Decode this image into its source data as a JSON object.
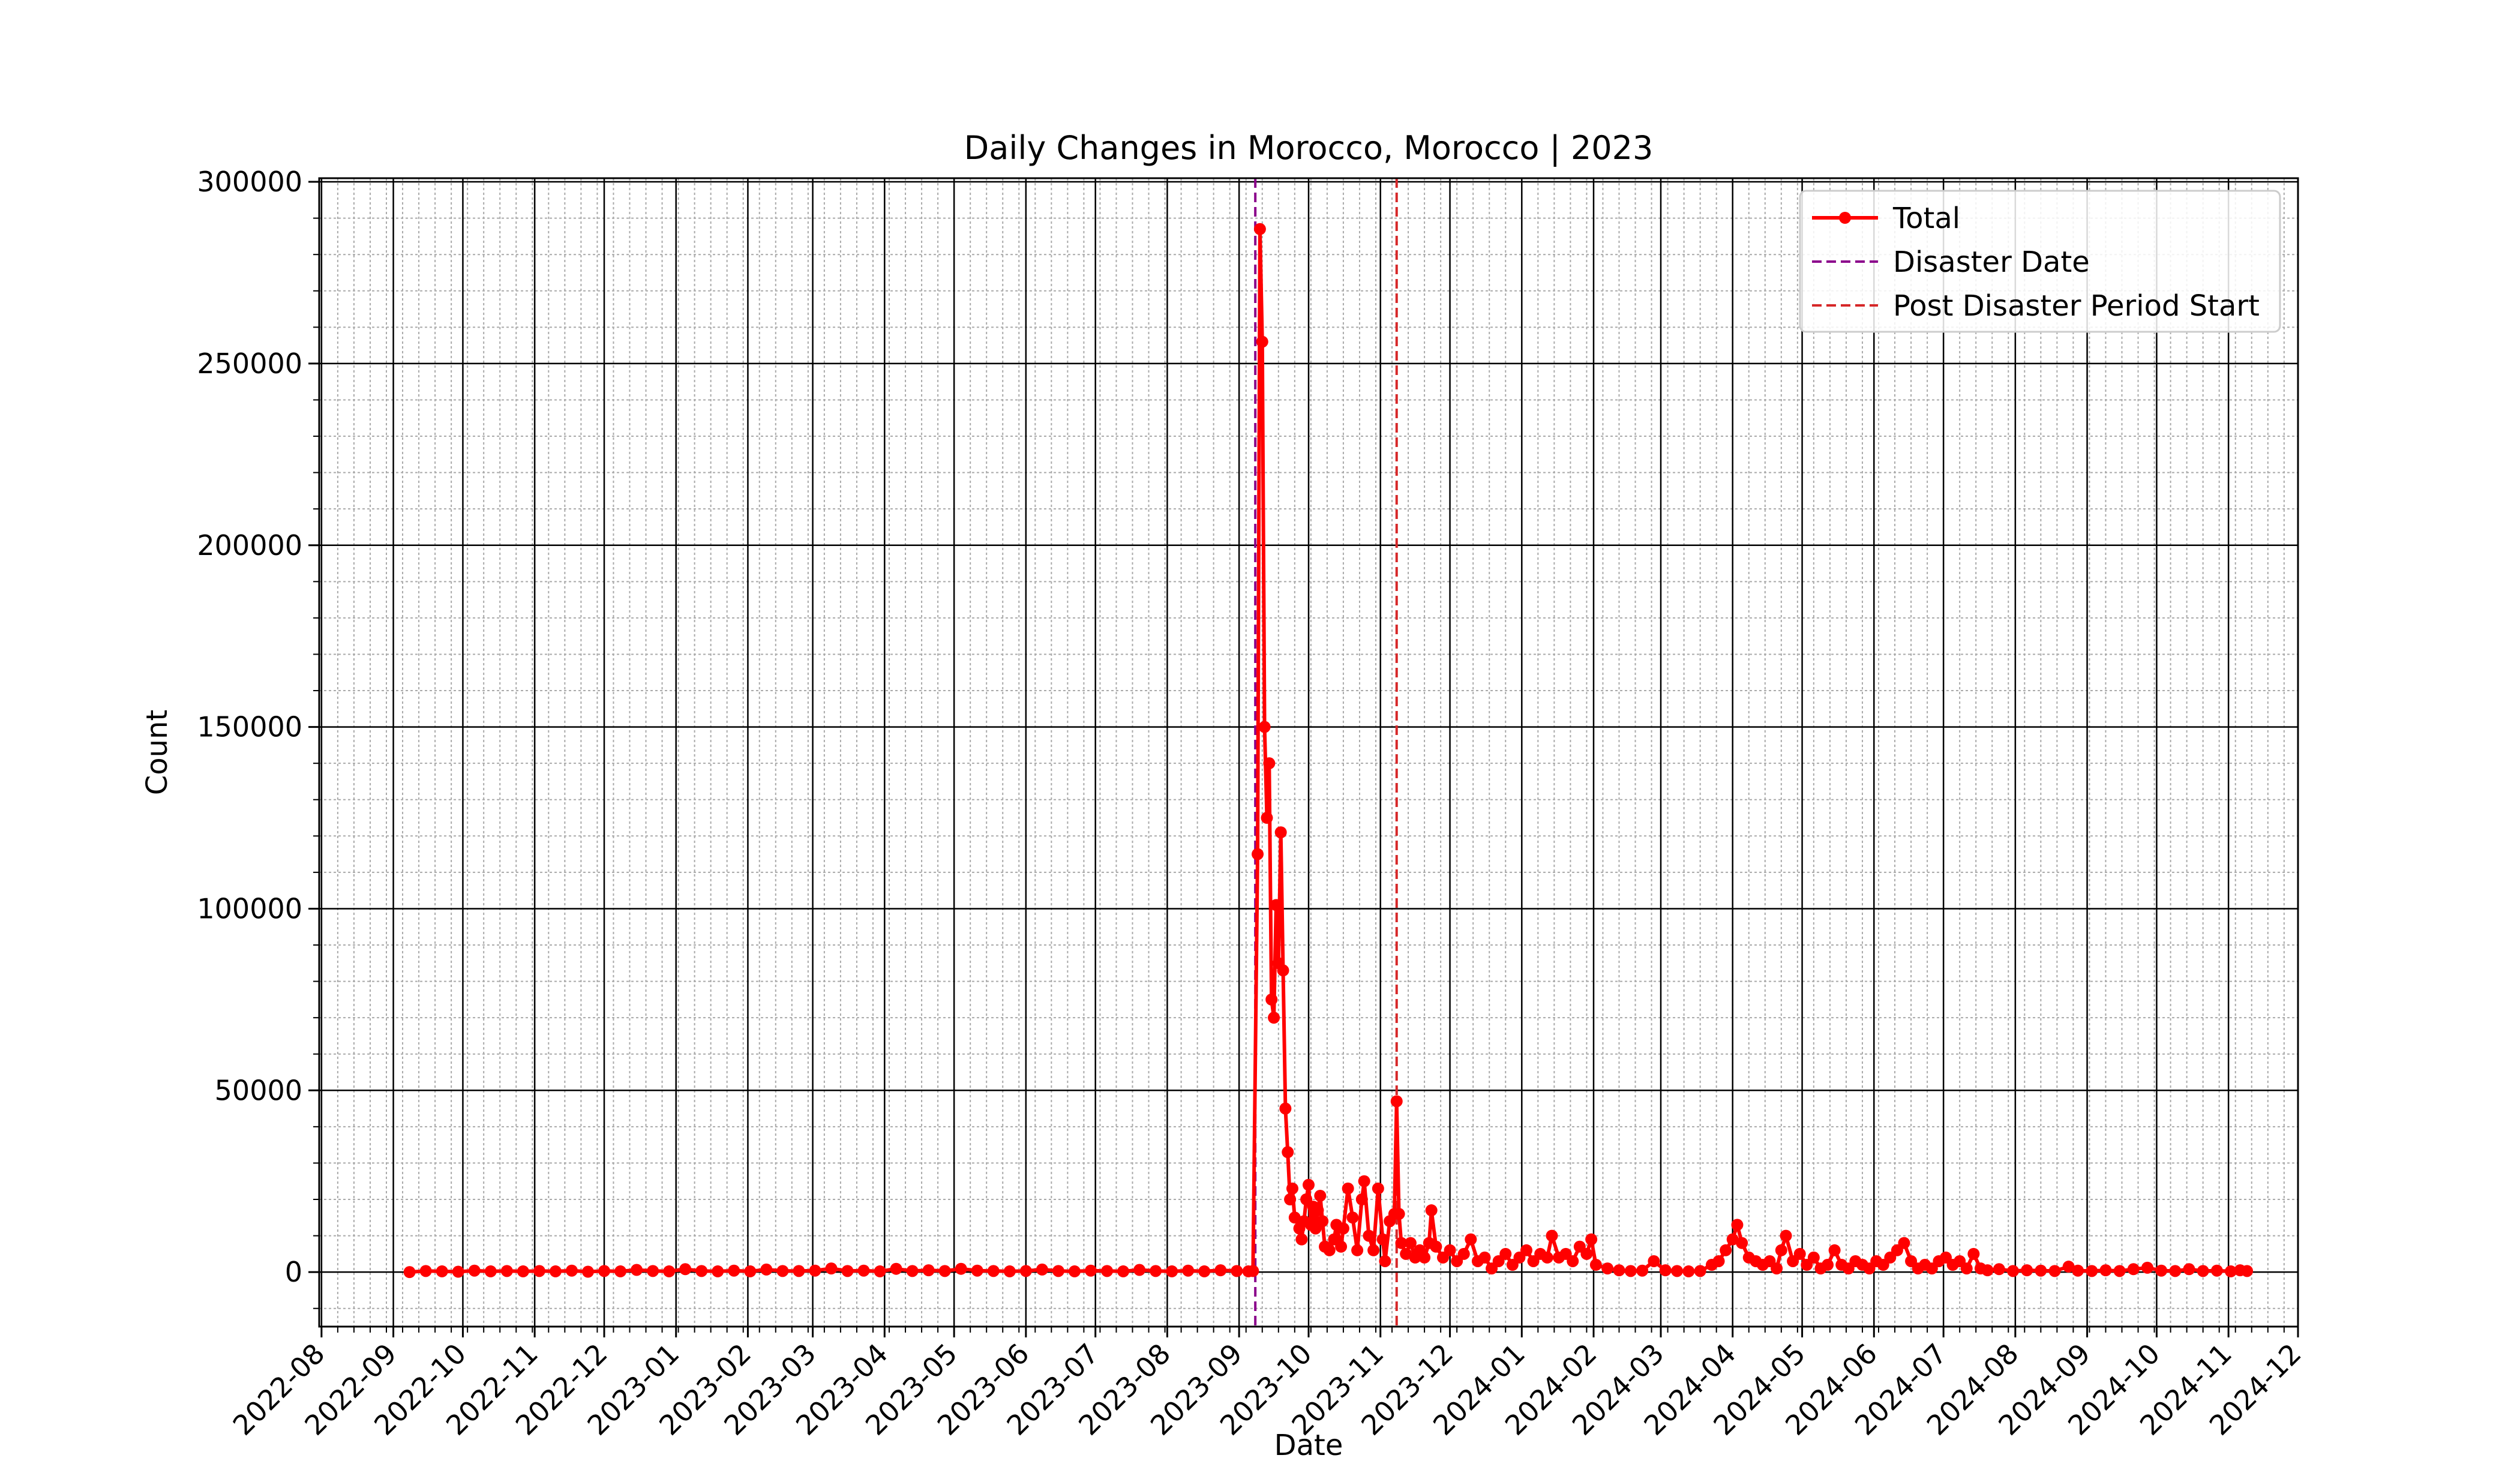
{
  "chart_data": {
    "type": "line",
    "title": "Daily Changes in Morocco, Morocco | 2023",
    "xlabel": "Date",
    "ylabel": "Count",
    "x_range": [
      "2022-07-31",
      "2024-12-01"
    ],
    "ylim": [
      -15000,
      301000
    ],
    "x_ticks": [
      "2022-08",
      "2022-09",
      "2022-10",
      "2022-11",
      "2022-12",
      "2023-01",
      "2023-02",
      "2023-03",
      "2023-04",
      "2023-05",
      "2023-06",
      "2023-07",
      "2023-08",
      "2023-09",
      "2023-10",
      "2023-11",
      "2023-12",
      "2024-01",
      "2024-02",
      "2024-03",
      "2024-04",
      "2024-05",
      "2024-06",
      "2024-07",
      "2024-08",
      "2024-09",
      "2024-10",
      "2024-11",
      "2024-12"
    ],
    "y_ticks": [
      0,
      50000,
      100000,
      150000,
      200000,
      250000,
      300000
    ],
    "grid": {
      "major": true,
      "minor": true
    },
    "legend_position": "top-right",
    "series": [
      {
        "name": "Total",
        "color": "#ff0000",
        "marker": "circle",
        "points": [
          [
            "2022-09-08",
            0
          ],
          [
            "2022-09-15",
            300
          ],
          [
            "2022-09-22",
            200
          ],
          [
            "2022-09-29",
            100
          ],
          [
            "2022-10-06",
            400
          ],
          [
            "2022-10-13",
            200
          ],
          [
            "2022-10-20",
            300
          ],
          [
            "2022-10-27",
            200
          ],
          [
            "2022-11-03",
            300
          ],
          [
            "2022-11-10",
            200
          ],
          [
            "2022-11-17",
            400
          ],
          [
            "2022-11-24",
            100
          ],
          [
            "2022-12-01",
            300
          ],
          [
            "2022-12-08",
            200
          ],
          [
            "2022-12-15",
            600
          ],
          [
            "2022-12-22",
            300
          ],
          [
            "2022-12-29",
            200
          ],
          [
            "2023-01-05",
            800
          ],
          [
            "2023-01-12",
            300
          ],
          [
            "2023-01-19",
            200
          ],
          [
            "2023-01-26",
            400
          ],
          [
            "2023-02-02",
            200
          ],
          [
            "2023-02-09",
            700
          ],
          [
            "2023-02-16",
            300
          ],
          [
            "2023-02-23",
            300
          ],
          [
            "2023-03-02",
            400
          ],
          [
            "2023-03-09",
            1000
          ],
          [
            "2023-03-16",
            300
          ],
          [
            "2023-03-23",
            400
          ],
          [
            "2023-03-30",
            200
          ],
          [
            "2023-04-06",
            900
          ],
          [
            "2023-04-13",
            300
          ],
          [
            "2023-04-20",
            500
          ],
          [
            "2023-04-27",
            300
          ],
          [
            "2023-05-04",
            900
          ],
          [
            "2023-05-11",
            400
          ],
          [
            "2023-05-18",
            300
          ],
          [
            "2023-05-25",
            200
          ],
          [
            "2023-06-01",
            300
          ],
          [
            "2023-06-08",
            700
          ],
          [
            "2023-06-15",
            300
          ],
          [
            "2023-06-22",
            200
          ],
          [
            "2023-06-29",
            400
          ],
          [
            "2023-07-06",
            300
          ],
          [
            "2023-07-13",
            200
          ],
          [
            "2023-07-20",
            600
          ],
          [
            "2023-07-27",
            300
          ],
          [
            "2023-08-03",
            200
          ],
          [
            "2023-08-10",
            400
          ],
          [
            "2023-08-17",
            200
          ],
          [
            "2023-08-24",
            500
          ],
          [
            "2023-08-31",
            300
          ],
          [
            "2023-09-05",
            200
          ],
          [
            "2023-09-07",
            300
          ],
          [
            "2023-09-09",
            115000
          ],
          [
            "2023-09-10",
            287000
          ],
          [
            "2023-09-11",
            256000
          ],
          [
            "2023-09-12",
            150000
          ],
          [
            "2023-09-13",
            125000
          ],
          [
            "2023-09-14",
            140000
          ],
          [
            "2023-09-15",
            75000
          ],
          [
            "2023-09-16",
            70000
          ],
          [
            "2023-09-17",
            101000
          ],
          [
            "2023-09-18",
            85000
          ],
          [
            "2023-09-19",
            121000
          ],
          [
            "2023-09-20",
            83000
          ],
          [
            "2023-09-21",
            45000
          ],
          [
            "2023-09-22",
            33000
          ],
          [
            "2023-09-23",
            20000
          ],
          [
            "2023-09-24",
            23000
          ],
          [
            "2023-09-25",
            15000
          ],
          [
            "2023-09-27",
            12000
          ],
          [
            "2023-09-28",
            9000
          ],
          [
            "2023-09-29",
            14000
          ],
          [
            "2023-09-30",
            20000
          ],
          [
            "2023-10-01",
            24000
          ],
          [
            "2023-10-02",
            13000
          ],
          [
            "2023-10-03",
            18000
          ],
          [
            "2023-10-04",
            12000
          ],
          [
            "2023-10-05",
            17000
          ],
          [
            "2023-10-06",
            21000
          ],
          [
            "2023-10-07",
            14000
          ],
          [
            "2023-10-08",
            7000
          ],
          [
            "2023-10-10",
            6000
          ],
          [
            "2023-10-12",
            9000
          ],
          [
            "2023-10-13",
            13000
          ],
          [
            "2023-10-15",
            7000
          ],
          [
            "2023-10-16",
            12000
          ],
          [
            "2023-10-18",
            23000
          ],
          [
            "2023-10-20",
            15000
          ],
          [
            "2023-10-22",
            6000
          ],
          [
            "2023-10-24",
            20000
          ],
          [
            "2023-10-25",
            25000
          ],
          [
            "2023-10-27",
            10000
          ],
          [
            "2023-10-29",
            6000
          ],
          [
            "2023-10-31",
            23000
          ],
          [
            "2023-11-02",
            9000
          ],
          [
            "2023-11-03",
            3000
          ],
          [
            "2023-11-05",
            14000
          ],
          [
            "2023-11-07",
            16000
          ],
          [
            "2023-11-08",
            47000
          ],
          [
            "2023-11-09",
            16000
          ],
          [
            "2023-11-10",
            8000
          ],
          [
            "2023-11-12",
            5000
          ],
          [
            "2023-11-14",
            8000
          ],
          [
            "2023-11-16",
            4000
          ],
          [
            "2023-11-18",
            6000
          ],
          [
            "2023-11-20",
            4000
          ],
          [
            "2023-11-22",
            8000
          ],
          [
            "2023-11-23",
            17000
          ],
          [
            "2023-11-25",
            7000
          ],
          [
            "2023-11-28",
            4000
          ],
          [
            "2023-12-01",
            6000
          ],
          [
            "2023-12-04",
            3000
          ],
          [
            "2023-12-07",
            5000
          ],
          [
            "2023-12-10",
            9000
          ],
          [
            "2023-12-13",
            3000
          ],
          [
            "2023-12-16",
            4000
          ],
          [
            "2023-12-19",
            1000
          ],
          [
            "2023-12-22",
            3000
          ],
          [
            "2023-12-25",
            5000
          ],
          [
            "2023-12-28",
            2000
          ],
          [
            "2023-12-31",
            4000
          ],
          [
            "2024-01-03",
            6000
          ],
          [
            "2024-01-06",
            3000
          ],
          [
            "2024-01-09",
            5000
          ],
          [
            "2024-01-12",
            4000
          ],
          [
            "2024-01-14",
            10000
          ],
          [
            "2024-01-17",
            4000
          ],
          [
            "2024-01-20",
            5000
          ],
          [
            "2024-01-23",
            3000
          ],
          [
            "2024-01-26",
            7000
          ],
          [
            "2024-01-29",
            5000
          ],
          [
            "2024-01-31",
            9000
          ],
          [
            "2024-02-02",
            2000
          ],
          [
            "2024-02-07",
            1000
          ],
          [
            "2024-02-12",
            500
          ],
          [
            "2024-02-17",
            300
          ],
          [
            "2024-02-22",
            400
          ],
          [
            "2024-02-27",
            3000
          ],
          [
            "2024-03-03",
            500
          ],
          [
            "2024-03-08",
            300
          ],
          [
            "2024-03-13",
            200
          ],
          [
            "2024-03-18",
            300
          ],
          [
            "2024-03-23",
            2000
          ],
          [
            "2024-03-26",
            3000
          ],
          [
            "2024-03-29",
            6000
          ],
          [
            "2024-04-01",
            9000
          ],
          [
            "2024-04-03",
            13000
          ],
          [
            "2024-04-05",
            8000
          ],
          [
            "2024-04-08",
            4000
          ],
          [
            "2024-04-11",
            3000
          ],
          [
            "2024-04-14",
            2000
          ],
          [
            "2024-04-17",
            3000
          ],
          [
            "2024-04-20",
            1000
          ],
          [
            "2024-04-22",
            6000
          ],
          [
            "2024-04-24",
            10000
          ],
          [
            "2024-04-27",
            3000
          ],
          [
            "2024-04-30",
            5000
          ],
          [
            "2024-05-03",
            2000
          ],
          [
            "2024-05-06",
            4000
          ],
          [
            "2024-05-09",
            1000
          ],
          [
            "2024-05-12",
            2000
          ],
          [
            "2024-05-15",
            6000
          ],
          [
            "2024-05-18",
            2000
          ],
          [
            "2024-05-21",
            1000
          ],
          [
            "2024-05-24",
            3000
          ],
          [
            "2024-05-27",
            2000
          ],
          [
            "2024-05-30",
            1000
          ],
          [
            "2024-06-02",
            3000
          ],
          [
            "2024-06-05",
            2000
          ],
          [
            "2024-06-08",
            4000
          ],
          [
            "2024-06-11",
            6000
          ],
          [
            "2024-06-14",
            8000
          ],
          [
            "2024-06-17",
            3000
          ],
          [
            "2024-06-20",
            1000
          ],
          [
            "2024-06-23",
            2000
          ],
          [
            "2024-06-26",
            1000
          ],
          [
            "2024-06-29",
            3000
          ],
          [
            "2024-07-02",
            4000
          ],
          [
            "2024-07-05",
            2000
          ],
          [
            "2024-07-08",
            3000
          ],
          [
            "2024-07-11",
            1000
          ],
          [
            "2024-07-14",
            5000
          ],
          [
            "2024-07-17",
            1000
          ],
          [
            "2024-07-20",
            500
          ],
          [
            "2024-07-25",
            800
          ],
          [
            "2024-07-31",
            300
          ],
          [
            "2024-08-06",
            500
          ],
          [
            "2024-08-12",
            400
          ],
          [
            "2024-08-18",
            300
          ],
          [
            "2024-08-24",
            1500
          ],
          [
            "2024-08-28",
            400
          ],
          [
            "2024-09-03",
            300
          ],
          [
            "2024-09-09",
            500
          ],
          [
            "2024-09-15",
            300
          ],
          [
            "2024-09-21",
            800
          ],
          [
            "2024-09-27",
            1200
          ],
          [
            "2024-10-03",
            400
          ],
          [
            "2024-10-09",
            300
          ],
          [
            "2024-10-15",
            800
          ],
          [
            "2024-10-21",
            300
          ],
          [
            "2024-10-27",
            400
          ],
          [
            "2024-11-02",
            200
          ],
          [
            "2024-11-06",
            500
          ],
          [
            "2024-11-09",
            300
          ]
        ]
      }
    ],
    "reference_lines": [
      {
        "name": "Disaster Date",
        "x": "2023-09-08",
        "color": "#8b008b"
      },
      {
        "name": "Post Disaster Period Start",
        "x": "2023-11-08",
        "color": "#d62728"
      }
    ]
  }
}
